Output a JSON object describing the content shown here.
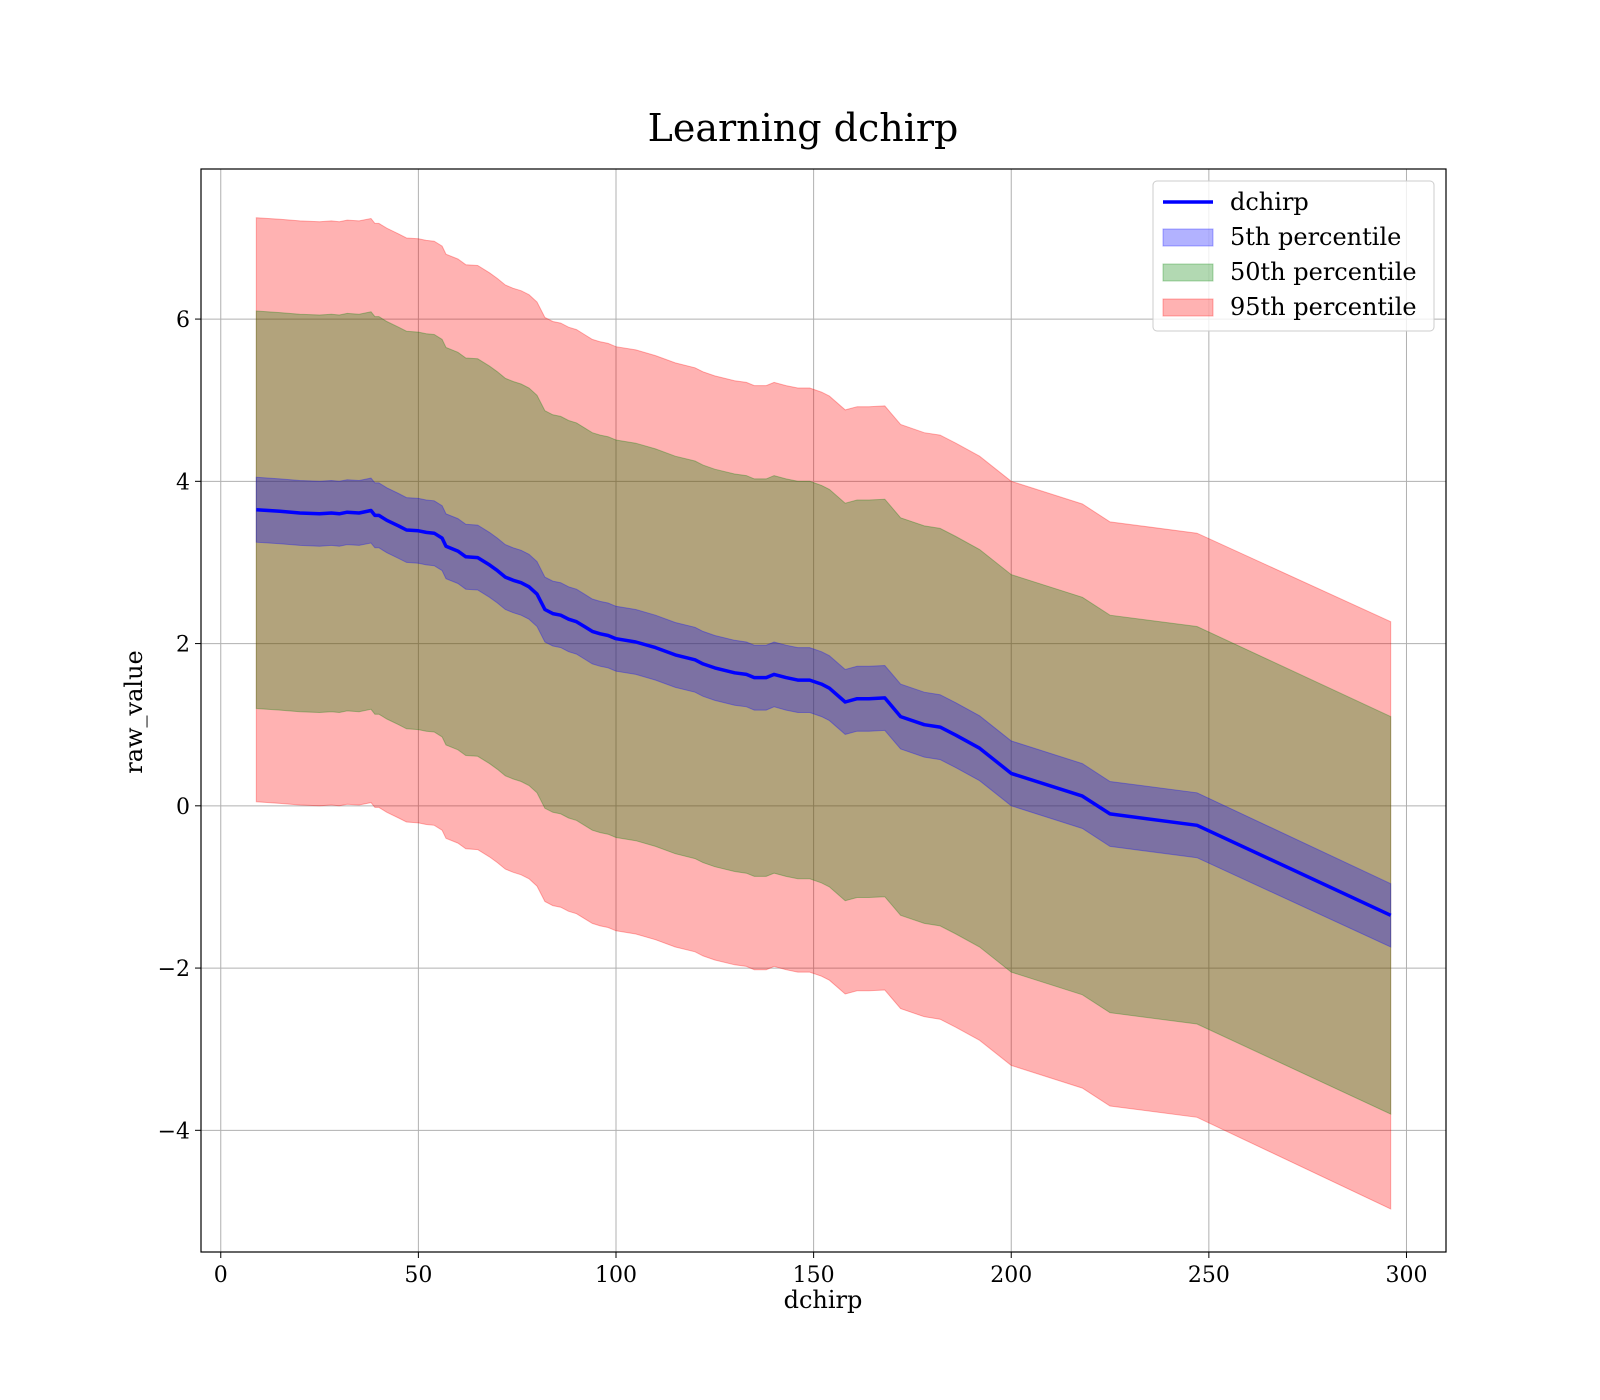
{
  "chart_data": {
    "type": "area",
    "title": "Learning dchirp",
    "xlabel": "dchirp",
    "ylabel": "raw_value",
    "xlim": [
      -5,
      310
    ],
    "ylim": [
      -5.5,
      7.85
    ],
    "xticks": [
      0,
      50,
      100,
      150,
      200,
      250,
      300
    ],
    "yticks": [
      -4,
      -2,
      0,
      2,
      4,
      6
    ],
    "xtick_labels": [
      "0",
      "50",
      "100",
      "150",
      "200",
      "250",
      "300"
    ],
    "ytick_labels": [
      "−4",
      "−2",
      "0",
      "2",
      "4",
      "6"
    ],
    "grid": true,
    "legend_position": "top-right",
    "x": [
      9,
      15,
      20,
      25,
      28,
      30,
      32,
      35,
      38,
      39,
      40,
      42,
      45,
      47,
      50,
      52,
      54,
      56,
      57,
      60,
      62,
      65,
      68,
      70,
      72,
      74,
      76,
      78,
      80,
      82,
      84,
      86,
      88,
      90,
      92,
      94,
      96,
      98,
      100,
      105,
      110,
      115,
      120,
      122,
      125,
      130,
      133,
      135,
      138,
      140,
      143,
      146,
      149,
      152,
      154,
      158,
      161,
      164,
      168,
      172,
      178,
      182,
      186,
      192,
      200,
      218,
      225,
      247,
      296
    ],
    "series": [
      {
        "name": "dchirp",
        "kind": "line",
        "color": "#0000ff",
        "values": [
          3.65,
          3.63,
          3.61,
          3.6,
          3.61,
          3.6,
          3.62,
          3.61,
          3.64,
          3.58,
          3.58,
          3.52,
          3.45,
          3.4,
          3.39,
          3.37,
          3.36,
          3.3,
          3.2,
          3.14,
          3.07,
          3.06,
          2.97,
          2.9,
          2.82,
          2.78,
          2.75,
          2.7,
          2.61,
          2.42,
          2.37,
          2.35,
          2.3,
          2.27,
          2.21,
          2.15,
          2.12,
          2.1,
          2.06,
          2.02,
          1.95,
          1.86,
          1.8,
          1.75,
          1.7,
          1.64,
          1.62,
          1.58,
          1.58,
          1.62,
          1.58,
          1.55,
          1.55,
          1.5,
          1.45,
          1.28,
          1.32,
          1.32,
          1.33,
          1.1,
          1.0,
          0.97,
          0.87,
          0.71,
          0.4,
          0.12,
          -0.1,
          -0.24,
          -1.35
        ]
      },
      {
        "name": "5th percentile",
        "kind": "band",
        "color": "#0000ff",
        "half_width": [
          0.4,
          0.4,
          0.4,
          0.4,
          0.4,
          0.4,
          0.4,
          0.4,
          0.4,
          0.4,
          0.4,
          0.4,
          0.4,
          0.4,
          0.4,
          0.4,
          0.4,
          0.4,
          0.4,
          0.4,
          0.4,
          0.4,
          0.4,
          0.4,
          0.4,
          0.4,
          0.4,
          0.4,
          0.4,
          0.4,
          0.4,
          0.4,
          0.4,
          0.4,
          0.4,
          0.4,
          0.4,
          0.4,
          0.4,
          0.4,
          0.4,
          0.4,
          0.4,
          0.4,
          0.4,
          0.4,
          0.4,
          0.4,
          0.4,
          0.4,
          0.4,
          0.4,
          0.4,
          0.4,
          0.4,
          0.4,
          0.4,
          0.4,
          0.4,
          0.4,
          0.4,
          0.4,
          0.4,
          0.4,
          0.4,
          0.4,
          0.4,
          0.4,
          0.39
        ]
      },
      {
        "name": "50th percentile",
        "kind": "band",
        "color": "#008000",
        "half_width": [
          2.45,
          2.45,
          2.45,
          2.45,
          2.45,
          2.45,
          2.45,
          2.45,
          2.45,
          2.45,
          2.45,
          2.45,
          2.45,
          2.45,
          2.45,
          2.45,
          2.45,
          2.45,
          2.45,
          2.45,
          2.45,
          2.45,
          2.45,
          2.45,
          2.45,
          2.45,
          2.45,
          2.45,
          2.45,
          2.45,
          2.45,
          2.45,
          2.45,
          2.45,
          2.45,
          2.45,
          2.45,
          2.45,
          2.45,
          2.45,
          2.45,
          2.45,
          2.45,
          2.45,
          2.45,
          2.45,
          2.45,
          2.45,
          2.45,
          2.45,
          2.45,
          2.45,
          2.45,
          2.45,
          2.45,
          2.45,
          2.45,
          2.45,
          2.45,
          2.45,
          2.45,
          2.45,
          2.45,
          2.45,
          2.45,
          2.45,
          2.45,
          2.45,
          2.45
        ]
      },
      {
        "name": "95th percentile",
        "kind": "band",
        "color": "#ff0000",
        "half_width": [
          3.6,
          3.6,
          3.6,
          3.6,
          3.6,
          3.6,
          3.6,
          3.6,
          3.6,
          3.6,
          3.6,
          3.6,
          3.6,
          3.6,
          3.6,
          3.6,
          3.6,
          3.6,
          3.6,
          3.6,
          3.6,
          3.6,
          3.6,
          3.6,
          3.6,
          3.6,
          3.6,
          3.6,
          3.6,
          3.6,
          3.6,
          3.6,
          3.6,
          3.6,
          3.6,
          3.6,
          3.6,
          3.6,
          3.6,
          3.6,
          3.6,
          3.6,
          3.6,
          3.6,
          3.6,
          3.6,
          3.6,
          3.6,
          3.6,
          3.6,
          3.6,
          3.6,
          3.6,
          3.6,
          3.6,
          3.6,
          3.6,
          3.6,
          3.6,
          3.6,
          3.6,
          3.6,
          3.6,
          3.6,
          3.6,
          3.6,
          3.6,
          3.6,
          3.62
        ]
      }
    ],
    "legend": [
      {
        "label": "dchirp",
        "kind": "line",
        "color": "#0000ff"
      },
      {
        "label": "5th percentile",
        "kind": "patch",
        "color": "#0000ff"
      },
      {
        "label": "50th percentile",
        "kind": "patch",
        "color": "#008000"
      },
      {
        "label": "95th percentile",
        "kind": "patch",
        "color": "#ff0000"
      }
    ]
  }
}
